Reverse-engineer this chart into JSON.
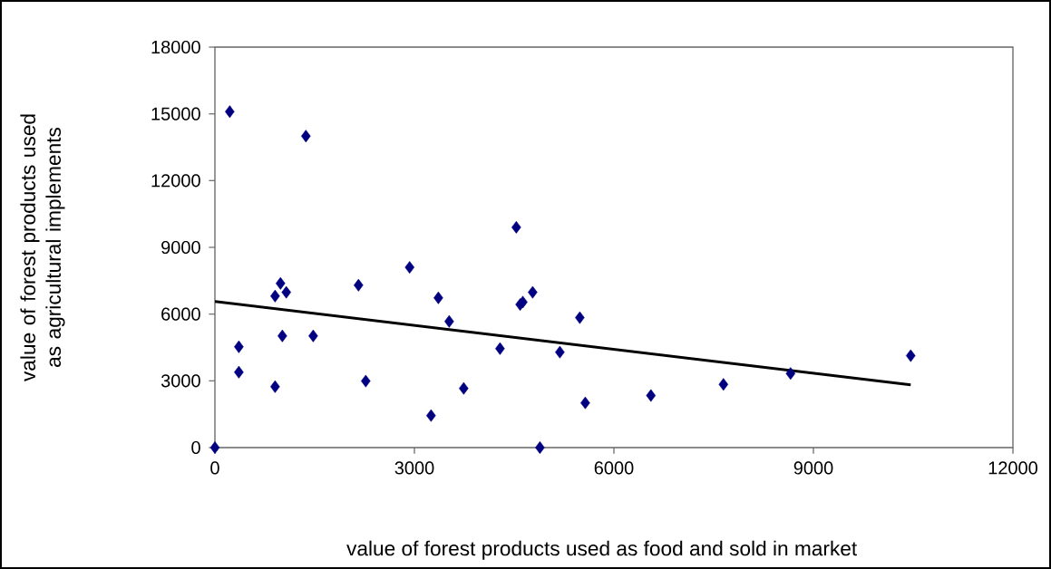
{
  "chart_data": {
    "type": "scatter",
    "xlabel": "value of forest products used as food and sold in market",
    "ylabel": "value of forest products used as agricultural implements",
    "xlim": [
      0,
      12000
    ],
    "xticks": [
      0,
      3000,
      6000,
      9000,
      12000
    ],
    "ylim": [
      0,
      18000
    ],
    "yticks": [
      0,
      3000,
      6000,
      9000,
      12000,
      15000,
      18000
    ],
    "grid": false,
    "marker": "diamond",
    "series": [
      {
        "color": "#000080",
        "x": [
          0,
          223,
          1368,
          4532,
          2928,
          986,
          905,
          1073,
          2159,
          3360,
          4778,
          4590,
          4630,
          5487,
          3523,
          1014,
          1478,
          360,
          4287,
          5187,
          360,
          2268,
          905,
          3741,
          5569,
          3250,
          4887,
          6556,
          7647,
          8656,
          10463
        ],
        "values": [
          0,
          15100,
          14000,
          9900,
          8100,
          7380,
          6810,
          6980,
          7300,
          6730,
          6980,
          6430,
          6540,
          5840,
          5670,
          5020,
          5020,
          4530,
          4450,
          4290,
          3390,
          2990,
          2740,
          2660,
          2010,
          1440,
          0,
          2340,
          2840,
          3330,
          4130
        ]
      },
      {
        "type": "line",
        "color": "#000000",
        "marker": "none",
        "x": [
          0,
          10463
        ],
        "values": [
          6570,
          2820
        ]
      }
    ]
  }
}
